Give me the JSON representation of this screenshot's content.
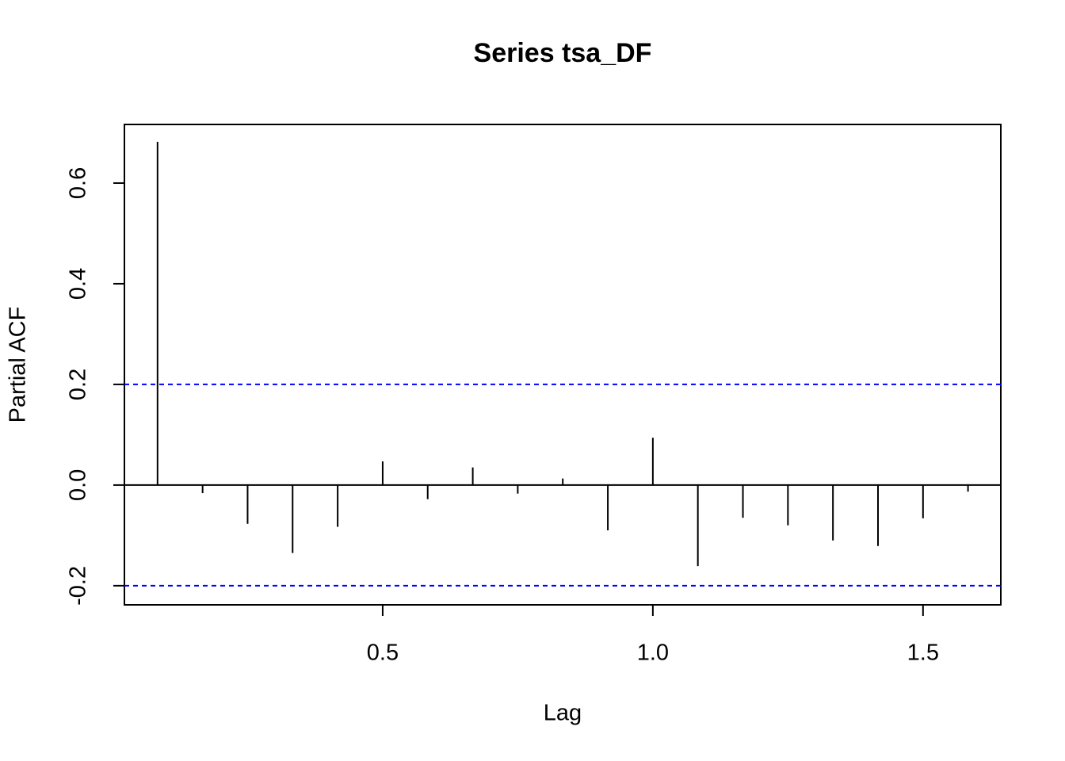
{
  "chart_data": {
    "type": "stem",
    "title": "Series  tsa_DF",
    "xlabel": "Lag",
    "ylabel": "Partial ACF",
    "x": [
      0.0833,
      0.1667,
      0.25,
      0.3333,
      0.4167,
      0.5,
      0.5833,
      0.6667,
      0.75,
      0.8333,
      0.9167,
      1.0,
      1.0833,
      1.1667,
      1.25,
      1.3333,
      1.4167,
      1.5,
      1.5833
    ],
    "values": [
      0.682,
      -0.016,
      -0.077,
      -0.135,
      -0.083,
      0.047,
      -0.028,
      0.035,
      -0.017,
      0.013,
      -0.09,
      0.094,
      -0.161,
      -0.065,
      -0.08,
      -0.11,
      -0.121,
      -0.066,
      -0.013
    ],
    "color": "#000000",
    "conf_limits": [
      0.2,
      -0.2
    ],
    "conf_color": "#0000ff",
    "xlim": [
      0.022,
      1.644
    ],
    "xticks": [
      0.5,
      {
        "value": 1,
        "label": "1.0"
      },
      1.5
    ],
    "ylim": [
      -0.238,
      0.7165
    ],
    "yticks": [
      -0.2,
      {
        "value": 0,
        "label": "0.0"
      },
      0.2,
      0.4,
      0.6
    ]
  }
}
